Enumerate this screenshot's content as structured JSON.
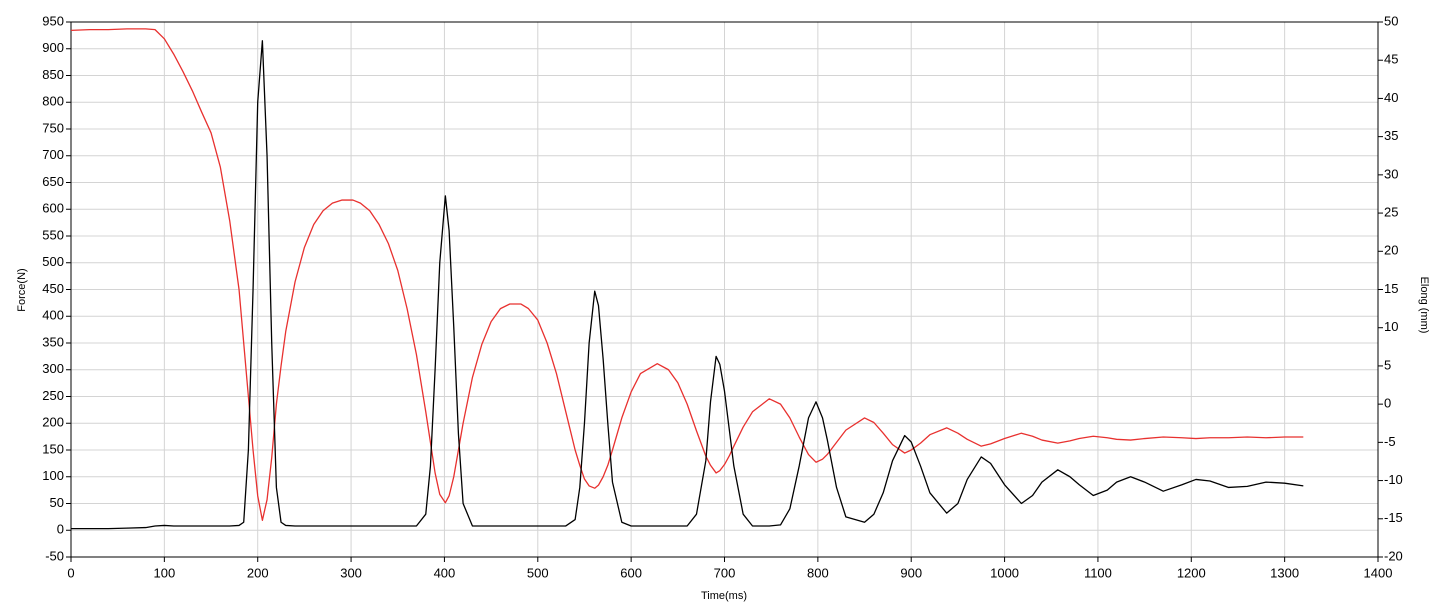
{
  "chart_data": {
    "type": "line",
    "xlabel": "Time(ms)",
    "ylabel": "Force(N)",
    "y2label": "Elong (mm)",
    "xlim": [
      0,
      1400
    ],
    "xticks": [
      0,
      100,
      200,
      300,
      400,
      500,
      600,
      700,
      800,
      900,
      1000,
      1100,
      1200,
      1300,
      1400
    ],
    "ylim": [
      -50,
      950
    ],
    "yticks": [
      -50,
      0,
      50,
      100,
      150,
      200,
      250,
      300,
      350,
      400,
      450,
      500,
      550,
      600,
      650,
      700,
      750,
      800,
      850,
      900,
      950
    ],
    "y2lim": [
      -20,
      50
    ],
    "y2ticks": [
      -20,
      -15,
      -10,
      -5,
      0,
      5,
      10,
      15,
      20,
      25,
      30,
      35,
      40,
      45,
      50
    ],
    "grid": true,
    "x": [
      0,
      20,
      40,
      60,
      80,
      90,
      100,
      110,
      120,
      130,
      140,
      150,
      160,
      170,
      180,
      185,
      190,
      195,
      200,
      205,
      210,
      215,
      220,
      225,
      230,
      240,
      250,
      260,
      270,
      280,
      290,
      302,
      310,
      320,
      330,
      340,
      350,
      360,
      370,
      380,
      385,
      390,
      395,
      401,
      405,
      410,
      415,
      420,
      430,
      440,
      450,
      460,
      470,
      482,
      490,
      500,
      510,
      520,
      530,
      540,
      545,
      550,
      555,
      561,
      565,
      570,
      575,
      580,
      590,
      600,
      610,
      628,
      640,
      650,
      660,
      670,
      680,
      685,
      691,
      695,
      700,
      705,
      710,
      720,
      730,
      748,
      760,
      770,
      780,
      790,
      798,
      805,
      810,
      820,
      830,
      850,
      860,
      870,
      880,
      893,
      900,
      910,
      920,
      938,
      950,
      960,
      975,
      985,
      1000,
      1018,
      1030,
      1040,
      1057,
      1070,
      1080,
      1095,
      1110,
      1120,
      1135,
      1150,
      1170,
      1190,
      1205,
      1220,
      1240,
      1260,
      1280,
      1300,
      1320
    ],
    "series": [
      {
        "color": "#000000",
        "values": [
          3,
          3,
          3,
          4,
          5,
          8,
          9,
          8,
          8,
          8,
          8,
          8,
          8,
          8,
          9,
          15,
          150,
          450,
          800,
          915,
          700,
          350,
          80,
          15,
          9,
          8,
          8,
          8,
          8,
          8,
          8,
          8,
          8,
          8,
          8,
          8,
          8,
          8,
          8,
          30,
          120,
          300,
          500,
          625,
          560,
          380,
          180,
          50,
          8,
          8,
          8,
          8,
          8,
          8,
          8,
          8,
          8,
          8,
          8,
          20,
          80,
          200,
          350,
          447,
          420,
          320,
          200,
          90,
          15,
          8,
          8,
          8,
          8,
          8,
          8,
          30,
          130,
          240,
          325,
          310,
          260,
          190,
          120,
          30,
          8,
          8,
          10,
          40,
          120,
          210,
          240,
          210,
          170,
          80,
          25,
          15,
          30,
          70,
          130,
          177,
          165,
          120,
          70,
          32,
          50,
          95,
          137,
          125,
          85,
          50,
          65,
          90,
          113,
          100,
          85,
          65,
          75,
          90,
          100,
          90,
          73,
          85,
          95,
          92,
          80,
          82,
          90,
          88,
          83
        ]
      },
      {
        "color": "#e8312f",
        "axis": "y2",
        "values": [
          48.9,
          49,
          49,
          49.1,
          49.1,
          49,
          47.8,
          45.8,
          43.5,
          41,
          38.2,
          35.5,
          31,
          24,
          15,
          8,
          1,
          -6,
          -12,
          -15.2,
          -12.5,
          -7,
          0,
          5,
          9.5,
          16,
          20.5,
          23.5,
          25.3,
          26.3,
          26.7,
          26.7,
          26.3,
          25.3,
          23.5,
          21,
          17.5,
          12.5,
          6.5,
          -1,
          -5,
          -9,
          -11.8,
          -12.9,
          -12,
          -9.5,
          -6,
          -2.5,
          3.5,
          7.8,
          10.8,
          12.5,
          13.1,
          13.1,
          12.5,
          11,
          8,
          4,
          -1,
          -6,
          -8,
          -9.8,
          -10.7,
          -11,
          -10.6,
          -9.5,
          -8,
          -6,
          -1.8,
          1.6,
          4,
          5.3,
          4.5,
          2.8,
          0,
          -3.5,
          -6.8,
          -8,
          -9,
          -8.7,
          -7.9,
          -6.8,
          -5.5,
          -3,
          -1,
          0.7,
          0,
          -1.8,
          -4.3,
          -6.6,
          -7.6,
          -7.2,
          -6.6,
          -5,
          -3.4,
          -1.8,
          -2.4,
          -3.8,
          -5.3,
          -6.4,
          -6,
          -5.1,
          -4,
          -3.1,
          -3.8,
          -4.6,
          -5.5,
          -5.2,
          -4.5,
          -3.8,
          -4.2,
          -4.7,
          -5.1,
          -4.8,
          -4.5,
          -4.2,
          -4.4,
          -4.6,
          -4.7,
          -4.5,
          -4.3,
          -4.4,
          -4.5,
          -4.4,
          -4.4,
          -4.3,
          -4.4,
          -4.3,
          -4.3
        ]
      }
    ]
  }
}
